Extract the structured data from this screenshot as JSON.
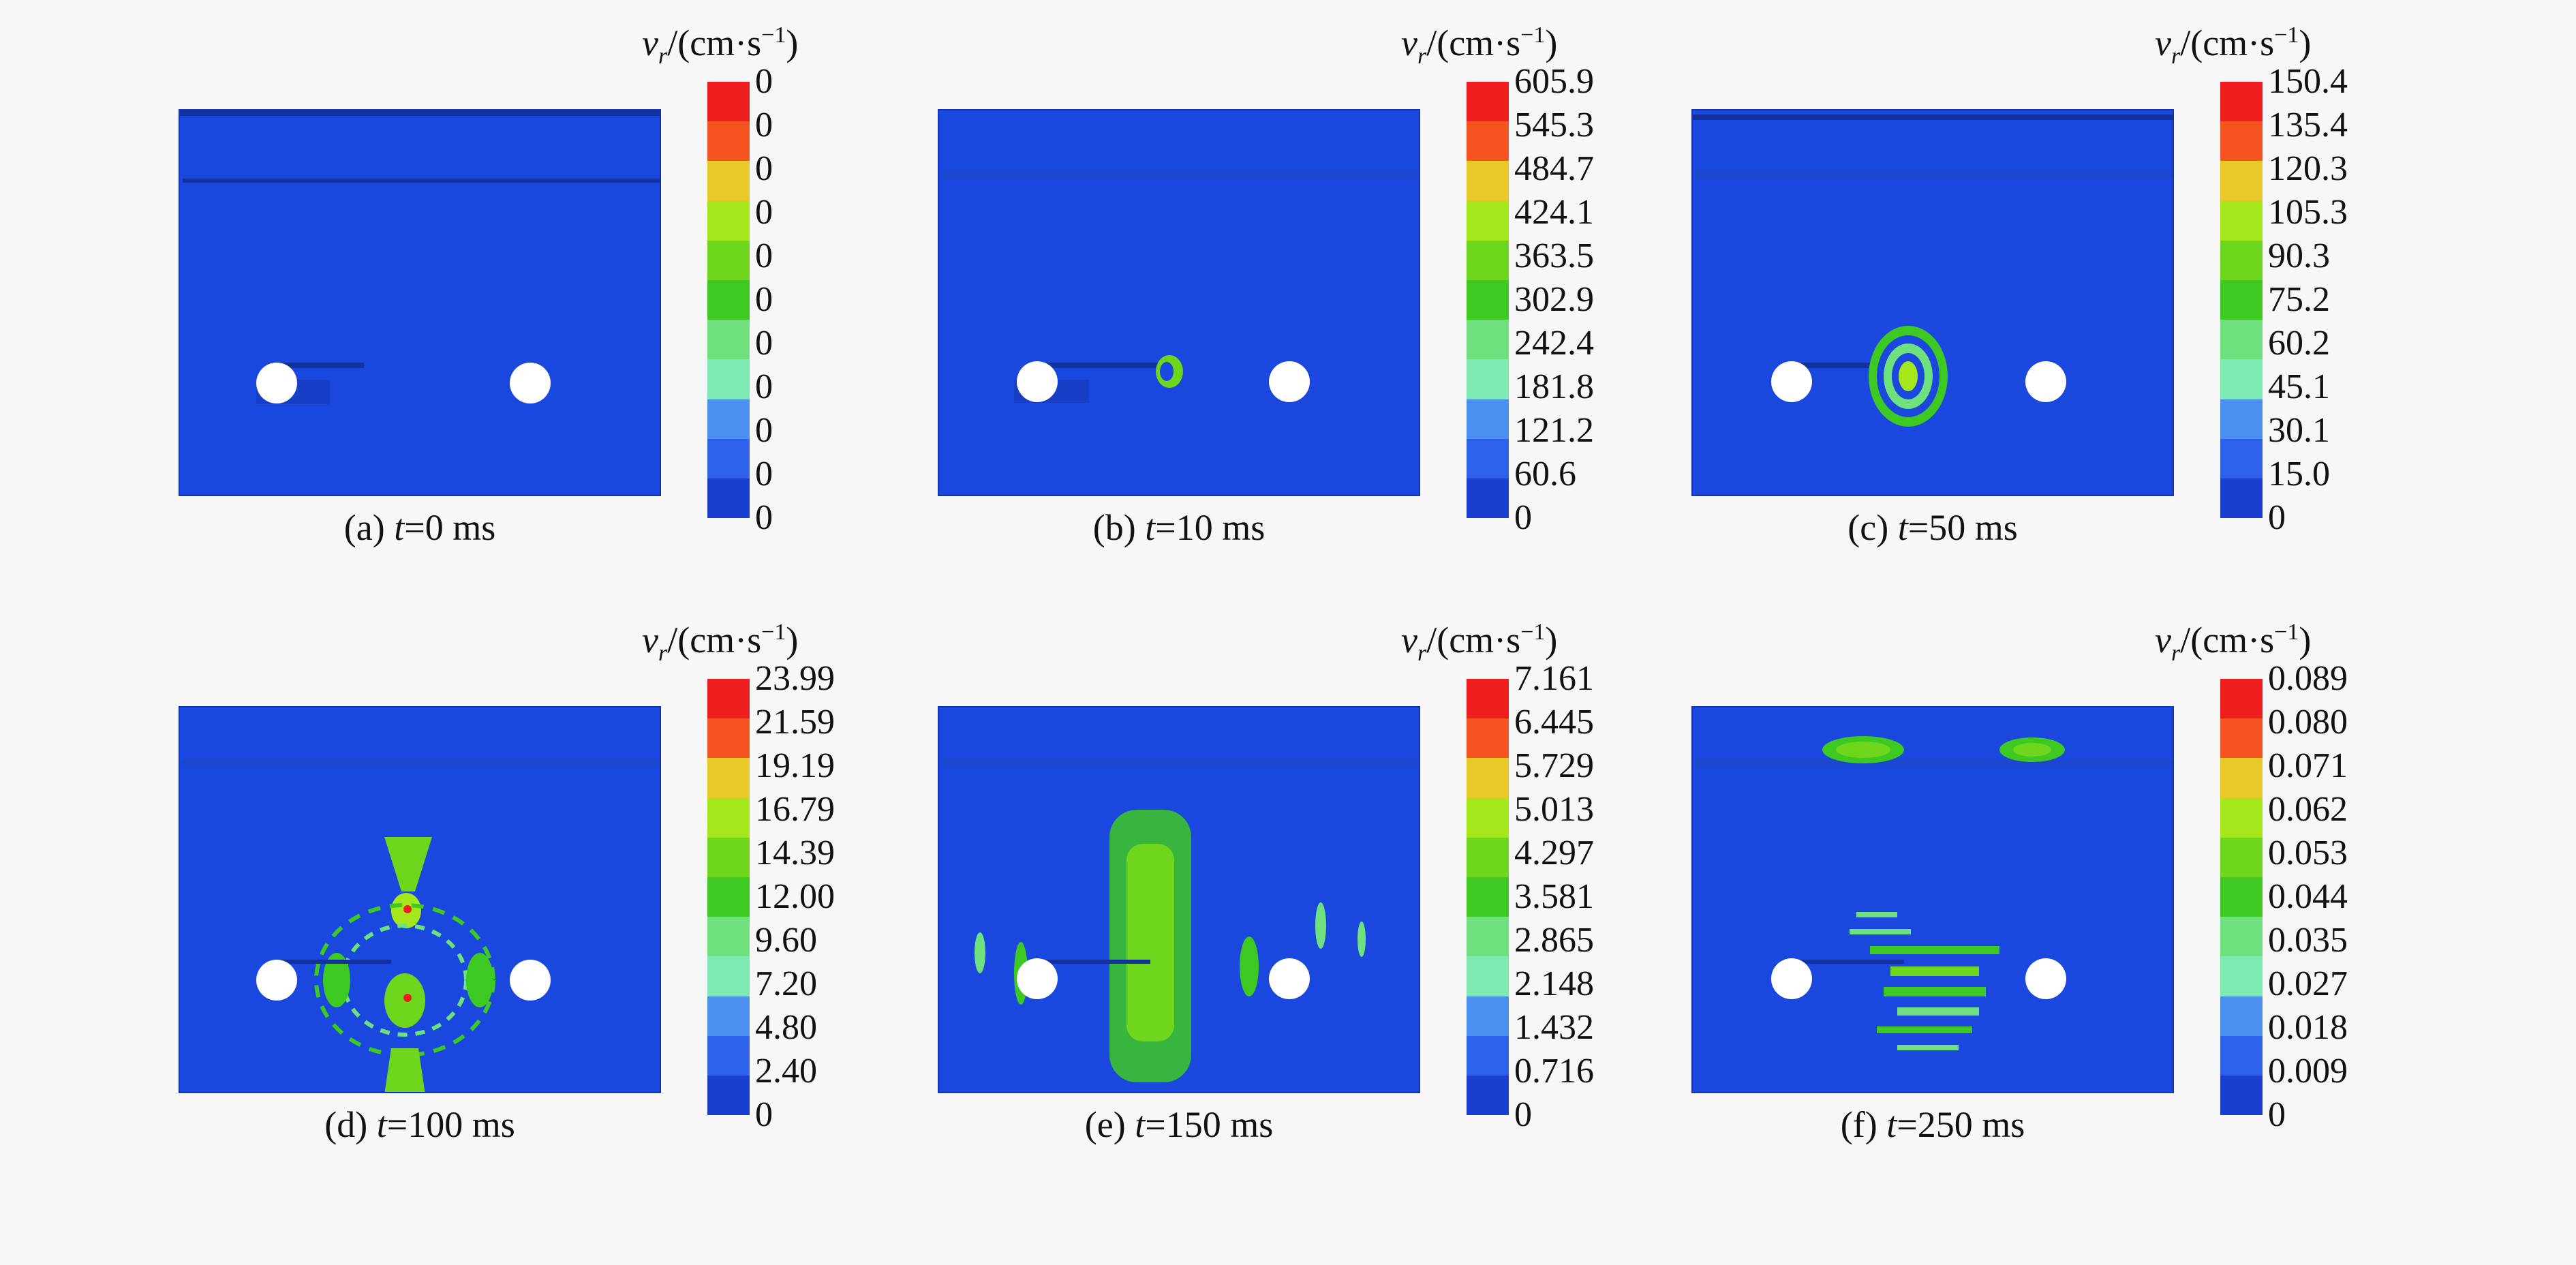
{
  "colorbar_title": {
    "symbol": "v",
    "subscript": "r",
    "unit": "/(cm·s",
    "exponent": "−1",
    "close": ")"
  },
  "colorbar_colors": [
    "#ef1e1e",
    "#f55420",
    "#e9c928",
    "#a4e81c",
    "#6ed61d",
    "#3dc922",
    "#6ee07e",
    "#7deab4",
    "#4b8ff0",
    "#2e62ea",
    "#1a3fd0"
  ],
  "field_color": "#1a47dd",
  "panels": [
    {
      "caption_prefix": "(a) ",
      "caption_var": "t",
      "caption_value": "=0 ms",
      "ticks": [
        "0",
        "0",
        "0",
        "0",
        "0",
        "0",
        "0",
        "0",
        "0",
        "0",
        "0"
      ]
    },
    {
      "caption_prefix": "(b) ",
      "caption_var": "t",
      "caption_value": "=10 ms",
      "ticks": [
        "605.9",
        "545.3",
        "484.7",
        "424.1",
        "363.5",
        "302.9",
        "242.4",
        "181.8",
        "121.2",
        "60.6",
        "0"
      ]
    },
    {
      "caption_prefix": "(c) ",
      "caption_var": "t",
      "caption_value": "=50 ms",
      "ticks": [
        "150.4",
        "135.4",
        "120.3",
        "105.3",
        "90.3",
        "75.2",
        "60.2",
        "45.1",
        "30.1",
        "15.0",
        "0"
      ]
    },
    {
      "caption_prefix": "(d) ",
      "caption_var": "t",
      "caption_value": "=100 ms",
      "ticks": [
        "23.99",
        "21.59",
        "19.19",
        "16.79",
        "14.39",
        "12.00",
        "9.60",
        "7.20",
        "4.80",
        "2.40",
        "0"
      ]
    },
    {
      "caption_prefix": "(e) ",
      "caption_var": "t",
      "caption_value": "=150 ms",
      "ticks": [
        "7.161",
        "6.445",
        "5.729",
        "5.013",
        "4.297",
        "3.581",
        "2.865",
        "2.148",
        "1.432",
        "0.716",
        "0"
      ]
    },
    {
      "caption_prefix": "(f) ",
      "caption_var": "t",
      "caption_value": "=250 ms",
      "ticks": [
        "0.089",
        "0.080",
        "0.071",
        "0.062",
        "0.053",
        "0.044",
        "0.035",
        "0.027",
        "0.018",
        "0.009",
        "0"
      ]
    }
  ]
}
